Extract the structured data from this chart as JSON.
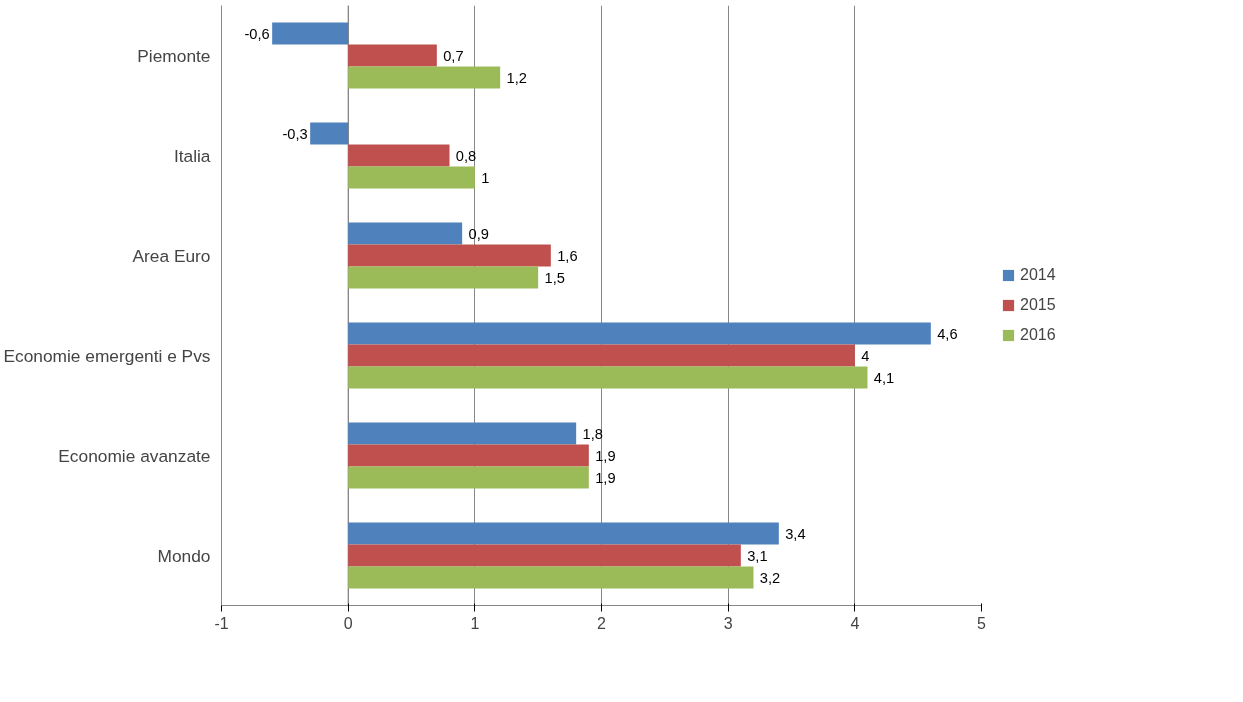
{
  "chart_data": {
    "type": "bar",
    "orientation": "horizontal",
    "categories": [
      "Piemonte",
      "Italia",
      "Area Euro",
      "Economie emergenti e Pvs",
      "Economie avanzate",
      "Mondo"
    ],
    "series": [
      {
        "name": "2014",
        "color": "#4f81bd",
        "values": [
          -0.6,
          -0.3,
          0.9,
          4.6,
          1.8,
          3.4
        ],
        "value_labels": [
          "-0,6",
          "-0,3",
          "0,9",
          "4,6",
          "1,8",
          "3,4"
        ]
      },
      {
        "name": "2015",
        "color": "#c0504d",
        "values": [
          0.7,
          0.8,
          1.6,
          4,
          1.9,
          3.1
        ],
        "value_labels": [
          "0,7",
          "0,8",
          "1,6",
          "4",
          "1,9",
          "3,1"
        ]
      },
      {
        "name": "2016",
        "color": "#9bbb59",
        "values": [
          1.2,
          1,
          1.5,
          4.1,
          1.9,
          3.2
        ],
        "value_labels": [
          "1,2",
          "1",
          "1,5",
          "4,1",
          "1,9",
          "3,2"
        ]
      }
    ],
    "xlim": [
      -1,
      5
    ],
    "xticks": [
      -1,
      0,
      1,
      2,
      3,
      4,
      5
    ],
    "grid": "x",
    "legend": "right"
  }
}
